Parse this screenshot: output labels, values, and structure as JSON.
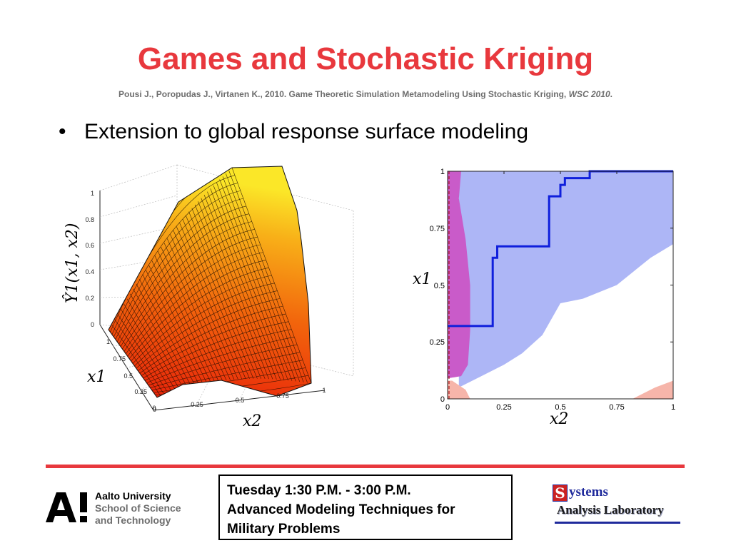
{
  "header": {
    "title": "Games and Stochastic Kriging",
    "reference": "Pousi J., Poropudas J., Virtanen K., 2010. Game Theoretic Simulation Metamodeling Using Stochastic Kriging, ",
    "reference_venue": "WSC 2010",
    "reference_end": "."
  },
  "body": {
    "bullet_symbol": "•",
    "bullet_text": "Extension to global response surface modeling"
  },
  "surface_plot": {
    "z_ticks": [
      "0",
      "0.2",
      "0.4",
      "0.6",
      "0.8",
      "1"
    ],
    "x1_ticks": [
      "0",
      "0.25",
      "0.5",
      "0.75",
      "1"
    ],
    "x2_ticks": [
      "0",
      "0.25",
      "0.5",
      "0.75",
      "1"
    ],
    "z_label": "Ŷ1(x1, x2)",
    "x1_label": "x1",
    "x2_label": "x2"
  },
  "chart_data": {
    "type": "area",
    "x_ticks": [
      "0",
      "0.25",
      "0.5",
      "0.75",
      "1"
    ],
    "y_ticks": [
      "0",
      "0.25",
      "0.5",
      "0.75",
      "1"
    ],
    "xlabel": "x2",
    "ylabel": "x1",
    "xlim": [
      0,
      1
    ],
    "ylim": [
      0,
      1
    ],
    "series": [
      {
        "type": "step-line",
        "x": [
          0,
          0.2,
          0.2,
          0.22,
          0.22,
          0.45,
          0.45,
          0.5,
          0.5,
          0.52,
          0.52,
          0.63,
          0.63,
          1.0
        ],
        "y": [
          0.32,
          0.32,
          0.62,
          0.62,
          0.67,
          0.67,
          0.89,
          0.89,
          0.94,
          0.94,
          0.97,
          0.97,
          1.0,
          1.0
        ]
      }
    ],
    "regions": [
      {
        "color": "#c95bc9"
      },
      {
        "color": "#adb6f6"
      },
      {
        "color": "#f6b5aa"
      }
    ],
    "line_color": "#0f1fdc"
  },
  "footer": {
    "aalto_lines": [
      "Aalto University",
      "School of Science",
      "and Technology"
    ],
    "session_lines": [
      "Tuesday 1:30 P.M. - 3:00 P.M.",
      "Advanced Modeling Techniques for",
      "Military Problems"
    ],
    "sal_initial": "S",
    "sal_word": "ystems",
    "sal_lab": "Analysis Laboratory"
  }
}
